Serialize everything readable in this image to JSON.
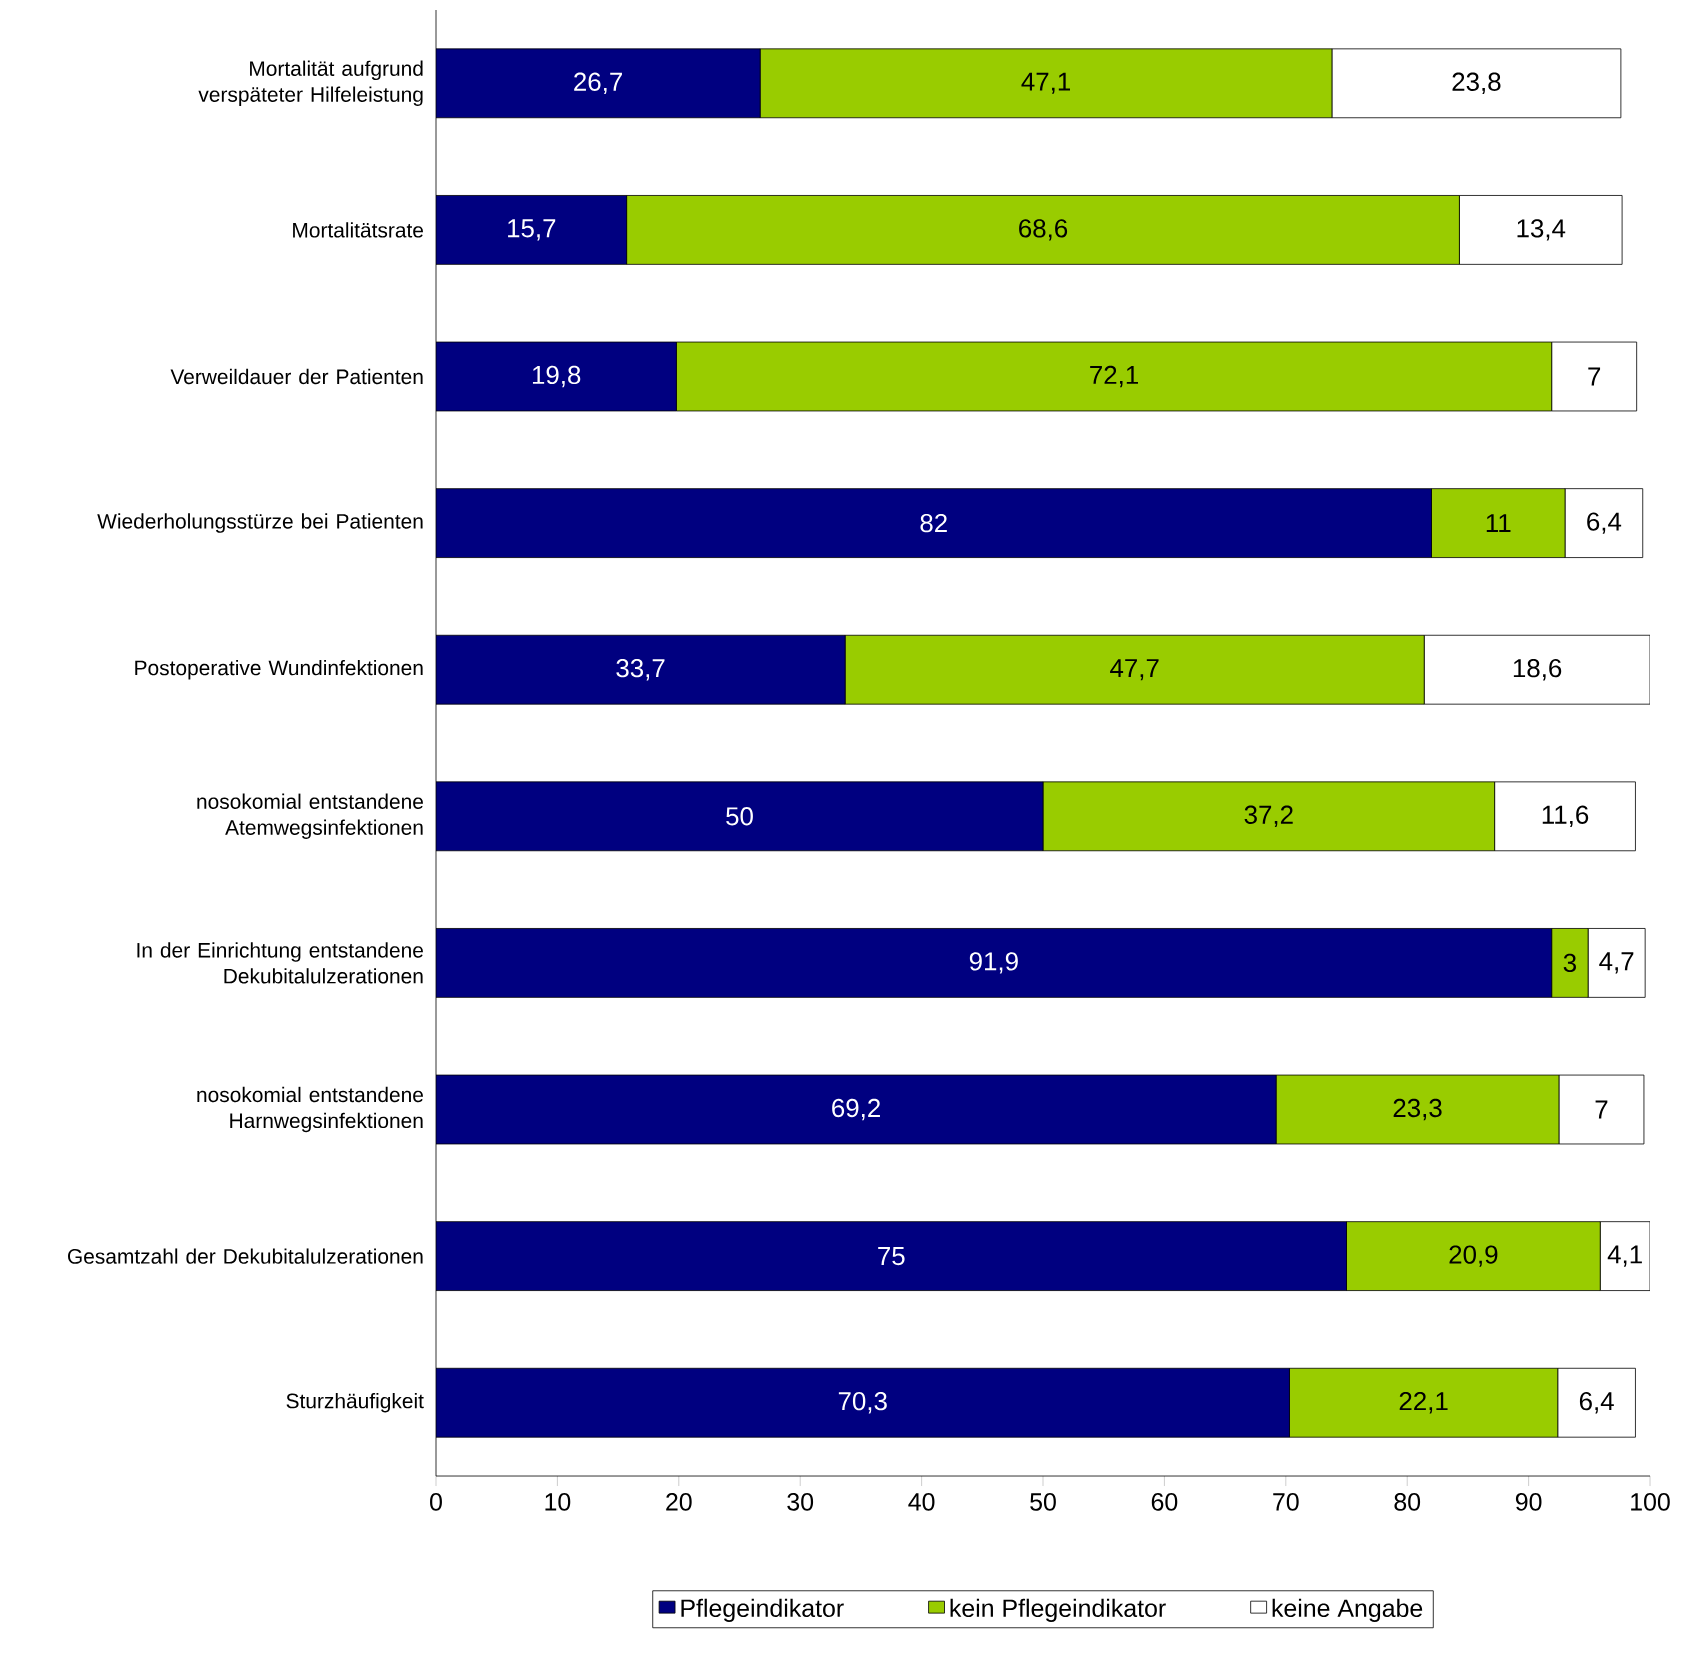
{
  "chart_data": {
    "type": "bar",
    "orientation": "horizontal",
    "stacked": true,
    "legend": "bottom",
    "categories": [
      "Mortalität aufgrund verspäteter Hilfeleistung",
      "Mortalitätsrate",
      "Verweildauer der Patienten",
      "Wiederholungsstürze bei Patienten",
      "Postoperative Wundinfektionen",
      "nosokomial entstandene Atemwegsinfektionen",
      "In der Einrichtung entstandene Dekubitalulzerationen",
      "nosokomial entstandene Harnwegsinfektionen",
      "Gesamtzahl der Dekubitalulzerationen",
      "Sturzhäufigkeit"
    ],
    "series": [
      {
        "name": "Pflegeindikator",
        "color": "#000080",
        "values": [
          26.7,
          15.7,
          19.8,
          82,
          33.7,
          50,
          91.9,
          69.2,
          75,
          70.3
        ],
        "value_labels": [
          "26,7",
          "15,7",
          "19,8",
          "82",
          "33,7",
          "50",
          "91,9",
          "69,2",
          "75",
          "70,3"
        ]
      },
      {
        "name": "kein Pflegeindikator",
        "color": "#99cc00",
        "values": [
          47.1,
          68.6,
          72.1,
          11,
          47.7,
          37.2,
          3,
          23.3,
          20.9,
          22.1
        ],
        "value_labels": [
          "47,1",
          "68,6",
          "72,1",
          "11",
          "47,7",
          "37,2",
          "3",
          "23,3",
          "20,9",
          "22,1"
        ]
      },
      {
        "name": "keine Angabe",
        "color": "#ffffff",
        "values": [
          23.8,
          13.4,
          7,
          6.4,
          18.6,
          11.6,
          4.7,
          7,
          4.1,
          6.4
        ],
        "value_labels": [
          "23,8",
          "13,4",
          "7",
          "6,4",
          "18,6",
          "11,6",
          "4,7",
          "7",
          "4,1",
          "6,4"
        ]
      }
    ],
    "xlim": [
      0,
      100
    ],
    "xticks": [
      0,
      10,
      20,
      30,
      40,
      50,
      60,
      70,
      80,
      90,
      100
    ]
  }
}
